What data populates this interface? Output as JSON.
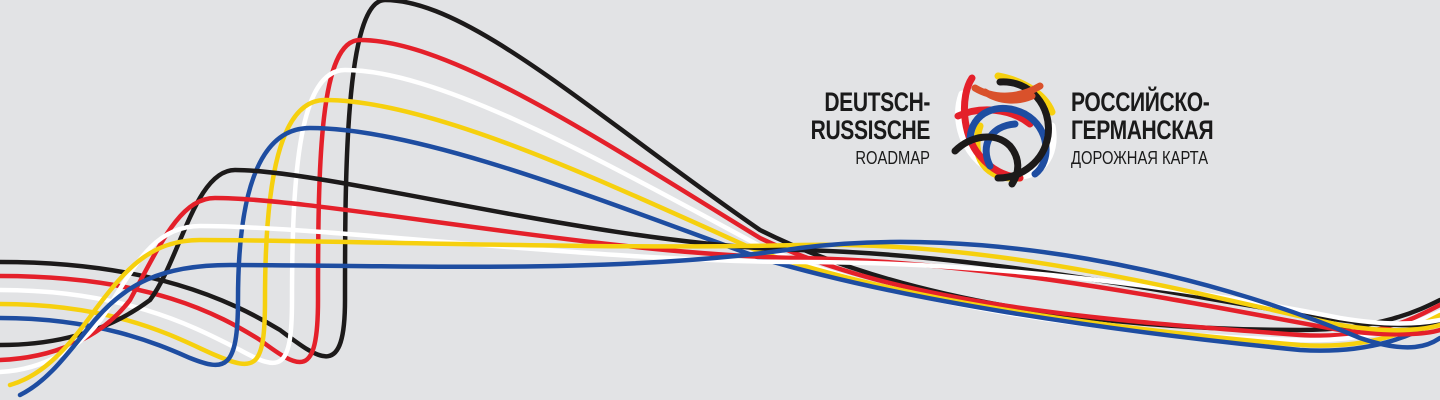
{
  "brand": {
    "de_line1": "DEUTSCH-",
    "de_line2": "RUSSISCHE",
    "de_line3": "ROADMAP",
    "ru_line1": "РОССИЙСКО-",
    "ru_line2": "ГЕРМАНСКАЯ",
    "ru_line3": "ДОРОЖНАЯ КАРТА"
  },
  "colors": {
    "background": "#e2e3e5",
    "black": "#1c1a1a",
    "red": "#e4202a",
    "white": "#ffffff",
    "yellow": "#f6d00e",
    "blue": "#1e4da1",
    "text": "#1a1a1a"
  },
  "ribbons": [
    "black",
    "red",
    "white",
    "yellow",
    "blue"
  ],
  "icons": {
    "emblem": "interwoven-ribbon-globe-icon"
  }
}
